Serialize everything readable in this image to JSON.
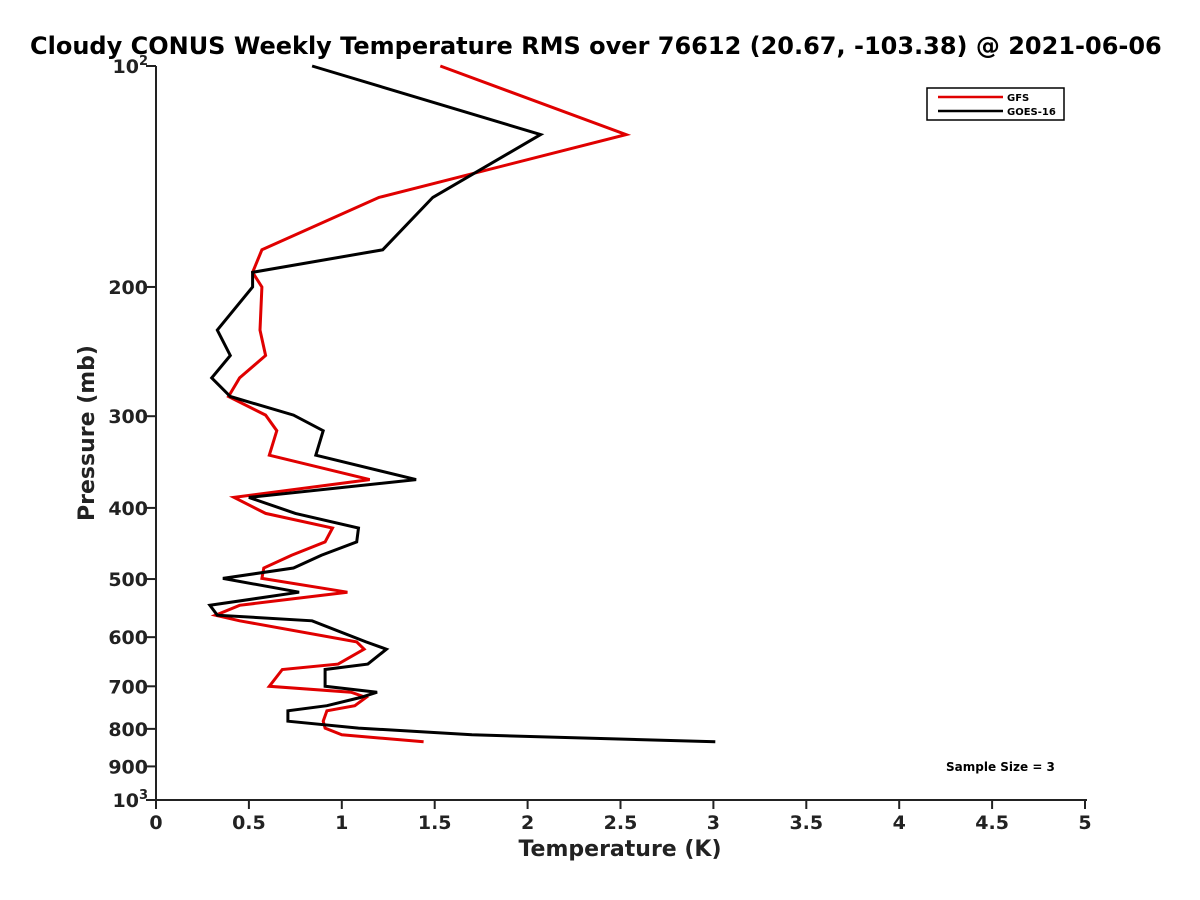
{
  "chart_data": {
    "type": "line",
    "title": "Cloudy CONUS Weekly Temperature RMS over 76612 (20.67, -103.38) @ 2021-06-06",
    "xlabel": "Temperature (K)",
    "ylabel": "Pressure (mb)",
    "xlim": [
      0,
      5
    ],
    "ylim": [
      100,
      1000
    ],
    "yscale": "log",
    "y_reversed": true,
    "x_ticks": [
      "0",
      "0.5",
      "1",
      "1.5",
      "2",
      "2.5",
      "3",
      "3.5",
      "4",
      "4.5",
      "5"
    ],
    "y_ticks": [
      {
        "value": 100,
        "base": "10",
        "exp": "2"
      },
      {
        "value": 200,
        "label": "200"
      },
      {
        "value": 300,
        "label": "300"
      },
      {
        "value": 400,
        "label": "400"
      },
      {
        "value": 500,
        "label": "500"
      },
      {
        "value": 600,
        "label": "600"
      },
      {
        "value": 700,
        "label": "700"
      },
      {
        "value": 800,
        "label": "800"
      },
      {
        "value": 900,
        "label": "900"
      },
      {
        "value": 1000,
        "base": "10",
        "exp": "3"
      }
    ],
    "legend_position": "top-right",
    "annotation": "Sample Size = 3",
    "series": [
      {
        "name": "GFS",
        "color": "#e00000",
        "points": [
          [
            1.53,
            100
          ],
          [
            2.53,
            124
          ],
          [
            1.2,
            151
          ],
          [
            0.57,
            178
          ],
          [
            0.52,
            191
          ],
          [
            0.57,
            200
          ],
          [
            0.56,
            229
          ],
          [
            0.59,
            248
          ],
          [
            0.45,
            266
          ],
          [
            0.39,
            282
          ],
          [
            0.59,
            299
          ],
          [
            0.65,
            314
          ],
          [
            0.61,
            339
          ],
          [
            1.15,
            366
          ],
          [
            0.42,
            387
          ],
          [
            0.59,
            407
          ],
          [
            0.95,
            426
          ],
          [
            0.91,
            445
          ],
          [
            0.73,
            464
          ],
          [
            0.58,
            483
          ],
          [
            0.57,
            499
          ],
          [
            1.03,
            521
          ],
          [
            0.45,
            543
          ],
          [
            0.32,
            560
          ],
          [
            0.45,
            570
          ],
          [
            1.08,
            609
          ],
          [
            1.12,
            623
          ],
          [
            0.98,
            653
          ],
          [
            0.68,
            664
          ],
          [
            0.61,
            700
          ],
          [
            1.05,
            713
          ],
          [
            1.13,
            725
          ],
          [
            1.07,
            744
          ],
          [
            0.92,
            756
          ],
          [
            0.9,
            781
          ],
          [
            0.91,
            798
          ],
          [
            1.0,
            815
          ],
          [
            1.44,
            833
          ]
        ]
      },
      {
        "name": "GOES-16",
        "color": "#000000",
        "points": [
          [
            0.84,
            100
          ],
          [
            2.07,
            124
          ],
          [
            1.49,
            151
          ],
          [
            1.22,
            178
          ],
          [
            0.52,
            191
          ],
          [
            0.52,
            200
          ],
          [
            0.33,
            229
          ],
          [
            0.4,
            248
          ],
          [
            0.3,
            266
          ],
          [
            0.4,
            282
          ],
          [
            0.74,
            299
          ],
          [
            0.9,
            314
          ],
          [
            0.86,
            339
          ],
          [
            1.4,
            366
          ],
          [
            0.5,
            387
          ],
          [
            0.75,
            407
          ],
          [
            1.09,
            426
          ],
          [
            1.08,
            445
          ],
          [
            0.89,
            464
          ],
          [
            0.74,
            483
          ],
          [
            0.36,
            499
          ],
          [
            0.77,
            521
          ],
          [
            0.29,
            543
          ],
          [
            0.33,
            560
          ],
          [
            0.84,
            570
          ],
          [
            1.13,
            609
          ],
          [
            1.24,
            623
          ],
          [
            1.14,
            653
          ],
          [
            0.91,
            664
          ],
          [
            0.91,
            700
          ],
          [
            1.19,
            713
          ],
          [
            1.1,
            725
          ],
          [
            0.92,
            744
          ],
          [
            0.71,
            756
          ],
          [
            0.71,
            781
          ],
          [
            1.09,
            798
          ],
          [
            1.7,
            815
          ],
          [
            3.01,
            833
          ]
        ]
      }
    ]
  }
}
